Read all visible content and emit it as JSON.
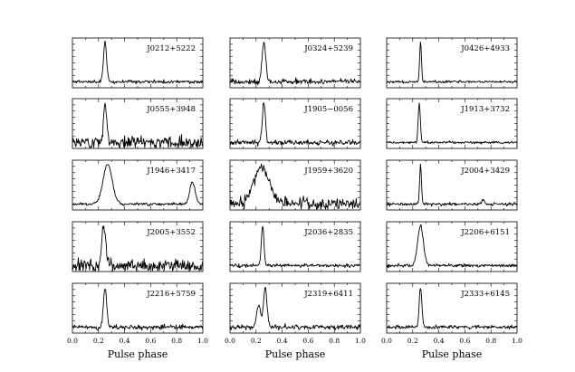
{
  "chart_data": {
    "type": "line",
    "layout": "5 rows x 3 columns grid of pulse profiles",
    "xlabel": "Pulse phase",
    "xlim": [
      0.0,
      1.0
    ],
    "xticks": [
      "0.0",
      "0.2",
      "0.4",
      "0.6",
      "0.8",
      "1.0"
    ],
    "ylabel": "",
    "line_color": "#000000",
    "panels": [
      {
        "name": "J0212+5222",
        "peaks": [
          {
            "phase": 0.25,
            "height": 1.0,
            "width": 0.012
          }
        ],
        "noise": 0.04,
        "seed": 11
      },
      {
        "name": "J0324+5239",
        "peaks": [
          {
            "phase": 0.26,
            "height": 1.0,
            "width": 0.014
          }
        ],
        "noise": 0.07,
        "seed": 12
      },
      {
        "name": "J0426+4933",
        "peaks": [
          {
            "phase": 0.26,
            "height": 1.0,
            "width": 0.007
          }
        ],
        "noise": 0.03,
        "seed": 13
      },
      {
        "name": "J0555+3948",
        "peaks": [
          {
            "phase": 0.25,
            "height": 1.0,
            "width": 0.012
          }
        ],
        "noise": 0.14,
        "seed": 14
      },
      {
        "name": "J1905−0056",
        "peaks": [
          {
            "phase": 0.26,
            "height": 1.0,
            "width": 0.012
          }
        ],
        "noise": 0.06,
        "seed": 15
      },
      {
        "name": "J1913+3732",
        "peaks": [
          {
            "phase": 0.25,
            "height": 1.0,
            "width": 0.008
          }
        ],
        "noise": 0.03,
        "seed": 16
      },
      {
        "name": "J1946+3417",
        "peaks": [
          {
            "phase": 0.27,
            "height": 1.0,
            "width": 0.035
          },
          {
            "phase": 0.92,
            "height": 0.55,
            "width": 0.02
          }
        ],
        "noise": 0.03,
        "seed": 17
      },
      {
        "name": "J1959+3620",
        "peaks": [
          {
            "phase": 0.24,
            "height": 0.9,
            "width": 0.06
          }
        ],
        "noise": 0.13,
        "seed": 18
      },
      {
        "name": "J2004+3429",
        "peaks": [
          {
            "phase": 0.26,
            "height": 1.0,
            "width": 0.007
          },
          {
            "phase": 0.74,
            "height": 0.12,
            "width": 0.01
          }
        ],
        "noise": 0.04,
        "seed": 19
      },
      {
        "name": "J2005+3552",
        "peaks": [
          {
            "phase": 0.24,
            "height": 1.0,
            "width": 0.015
          }
        ],
        "noise": 0.16,
        "seed": 20
      },
      {
        "name": "J2036+2835",
        "peaks": [
          {
            "phase": 0.25,
            "height": 1.0,
            "width": 0.01
          }
        ],
        "noise": 0.04,
        "seed": 21
      },
      {
        "name": "J2206+6151",
        "peaks": [
          {
            "phase": 0.26,
            "height": 1.0,
            "width": 0.022
          }
        ],
        "noise": 0.04,
        "seed": 22
      },
      {
        "name": "J2216+5759",
        "peaks": [
          {
            "phase": 0.25,
            "height": 1.0,
            "width": 0.012
          }
        ],
        "noise": 0.06,
        "seed": 23
      },
      {
        "name": "J2319+6411",
        "peaks": [
          {
            "phase": 0.22,
            "height": 0.55,
            "width": 0.015
          },
          {
            "phase": 0.27,
            "height": 1.0,
            "width": 0.013
          }
        ],
        "noise": 0.06,
        "seed": 24
      },
      {
        "name": "J2333+6145",
        "peaks": [
          {
            "phase": 0.26,
            "height": 1.0,
            "width": 0.01
          }
        ],
        "noise": 0.04,
        "seed": 25
      }
    ]
  }
}
